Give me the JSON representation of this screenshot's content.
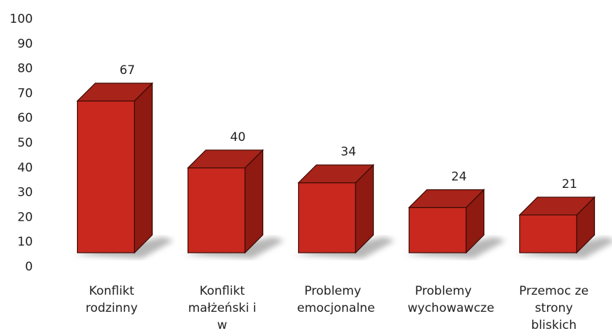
{
  "chart_data": {
    "type": "bar3d",
    "categories": [
      "Konflikt rodzinny",
      "Konflikt małżeński i w konkubinacje",
      "Problemy emocjonalne",
      "Problemy wychowawcze",
      "Przemoc ze strony bliskich"
    ],
    "values": [
      67,
      40,
      34,
      24,
      21
    ],
    "color": "#c8281e",
    "ylim": [
      0,
      100
    ],
    "yticks": [
      0,
      10,
      20,
      30,
      40,
      50,
      60,
      70,
      80,
      90,
      100
    ]
  }
}
